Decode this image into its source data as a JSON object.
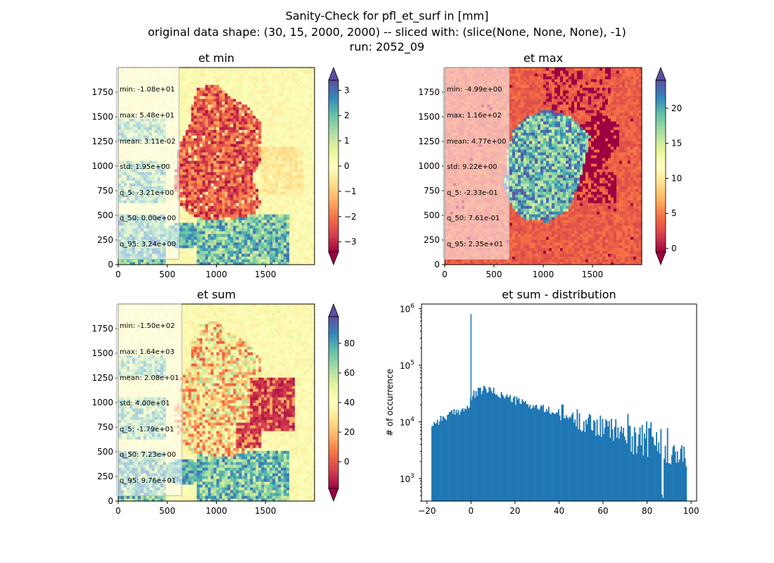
{
  "suptitle": {
    "line1": "Sanity-Check for pfl_et_surf in [mm]",
    "line2": "original data shape: (30, 15, 2000, 2000) -- sliced with: (slice(None, None, None), -1)",
    "line3": "run: 2052_09"
  },
  "colors": {
    "spectral": [
      "#9e0142",
      "#d53e4f",
      "#f46d43",
      "#fdae61",
      "#fee08b",
      "#ffffbf",
      "#e6f598",
      "#abdda4",
      "#66c2a5",
      "#3288bd",
      "#5e4fa2"
    ],
    "hist_bar": "#1f77b4"
  },
  "chart_data": [
    {
      "type": "heatmap",
      "title": "et min",
      "xlim": [
        0,
        2000
      ],
      "ylim": [
        0,
        2000
      ],
      "xticks": [
        "0",
        "500",
        "1000",
        "1500"
      ],
      "yticks": [
        "0",
        "250",
        "500",
        "750",
        "1000",
        "1250",
        "1500",
        "1750"
      ],
      "colorbar": {
        "vmin": -3.4,
        "vmax": 3.4,
        "ticks": [
          -3,
          -2,
          -1,
          0,
          1,
          2,
          3
        ],
        "tick_labels": [
          "−3",
          "−2",
          "−1",
          "0",
          "1",
          "2",
          "3"
        ],
        "extend": "both"
      },
      "stats": [
        "min: -1.08e+01",
        "max: 5.48e+01",
        "mean: 3.11e-02",
        "std: 1.95e+00",
        "q_5: -3.21e+00",
        "q_50: 0.00e+00",
        "q_95: 3.24e+00"
      ]
    },
    {
      "type": "heatmap",
      "title": "et max",
      "xlim": [
        0,
        2000
      ],
      "ylim": [
        0,
        2000
      ],
      "xticks": [
        "0",
        "500",
        "1000",
        "1500"
      ],
      "yticks": [
        "0",
        "250",
        "500",
        "750",
        "1000",
        "1250",
        "1500",
        "1750"
      ],
      "colorbar": {
        "vmin": -0.5,
        "vmax": 24,
        "ticks": [
          0,
          5,
          10,
          15,
          20
        ],
        "tick_labels": [
          "0",
          "5",
          "10",
          "15",
          "20"
        ],
        "extend": "both"
      },
      "stats": [
        "min: -4.99e+00",
        "max: 1.16e+02",
        "mean: 4.77e+00",
        "std: 9.22e+00",
        "q_5: -2.33e-01",
        "q_50: 7.61e-01",
        "q_95: 2.35e+01"
      ]
    },
    {
      "type": "heatmap",
      "title": "et sum",
      "xlim": [
        0,
        2000
      ],
      "ylim": [
        0,
        2000
      ],
      "xticks": [
        "0",
        "500",
        "1000",
        "1500"
      ],
      "yticks": [
        "0",
        "250",
        "500",
        "750",
        "1000",
        "1250",
        "1500",
        "1750"
      ],
      "colorbar": {
        "vmin": -18,
        "vmax": 98,
        "ticks": [
          0,
          20,
          40,
          60,
          80
        ],
        "tick_labels": [
          "0",
          "20",
          "40",
          "60",
          "80"
        ],
        "extend": "both"
      },
      "stats": [
        "min: -1.50e+02",
        "max: 1.64e+03",
        "mean: 2.08e+01",
        "std: 4.00e+01",
        "q_5: -1.79e+01",
        "q_50: 7.23e+00",
        "q_95: 9.76e+01"
      ]
    },
    {
      "type": "bar",
      "title": "et sum - distribution",
      "ylabel": "# of occurrence",
      "yscale": "log",
      "xlim": [
        -22.5,
        102.5
      ],
      "ylim": [
        400,
        1200000
      ],
      "xticks": [
        -20,
        0,
        20,
        40,
        60,
        80,
        100
      ],
      "xtick_labels": [
        "−20",
        "0",
        "20",
        "40",
        "60",
        "80",
        "100"
      ],
      "yticks": [
        1000,
        10000,
        100000,
        1000000
      ],
      "ytick_labels": [
        "10^3",
        "10^4",
        "10^5",
        "10^6"
      ],
      "bin_range": [
        -18,
        98
      ],
      "spike": {
        "x": 0,
        "y": 800000
      },
      "envelope": [
        {
          "x": -18,
          "y": 9000
        },
        {
          "x": -14,
          "y": 11000
        },
        {
          "x": -10,
          "y": 13000
        },
        {
          "x": -5,
          "y": 16000
        },
        {
          "x": -1,
          "y": 18000
        },
        {
          "x": 1,
          "y": 30000
        },
        {
          "x": 6,
          "y": 38000
        },
        {
          "x": 10,
          "y": 34000
        },
        {
          "x": 20,
          "y": 24000
        },
        {
          "x": 30,
          "y": 18000
        },
        {
          "x": 40,
          "y": 14000
        },
        {
          "x": 50,
          "y": 10500
        },
        {
          "x": 60,
          "y": 8000
        },
        {
          "x": 70,
          "y": 6500
        },
        {
          "x": 80,
          "y": 5000
        },
        {
          "x": 90,
          "y": 3600
        },
        {
          "x": 98,
          "y": 3000
        }
      ]
    }
  ]
}
